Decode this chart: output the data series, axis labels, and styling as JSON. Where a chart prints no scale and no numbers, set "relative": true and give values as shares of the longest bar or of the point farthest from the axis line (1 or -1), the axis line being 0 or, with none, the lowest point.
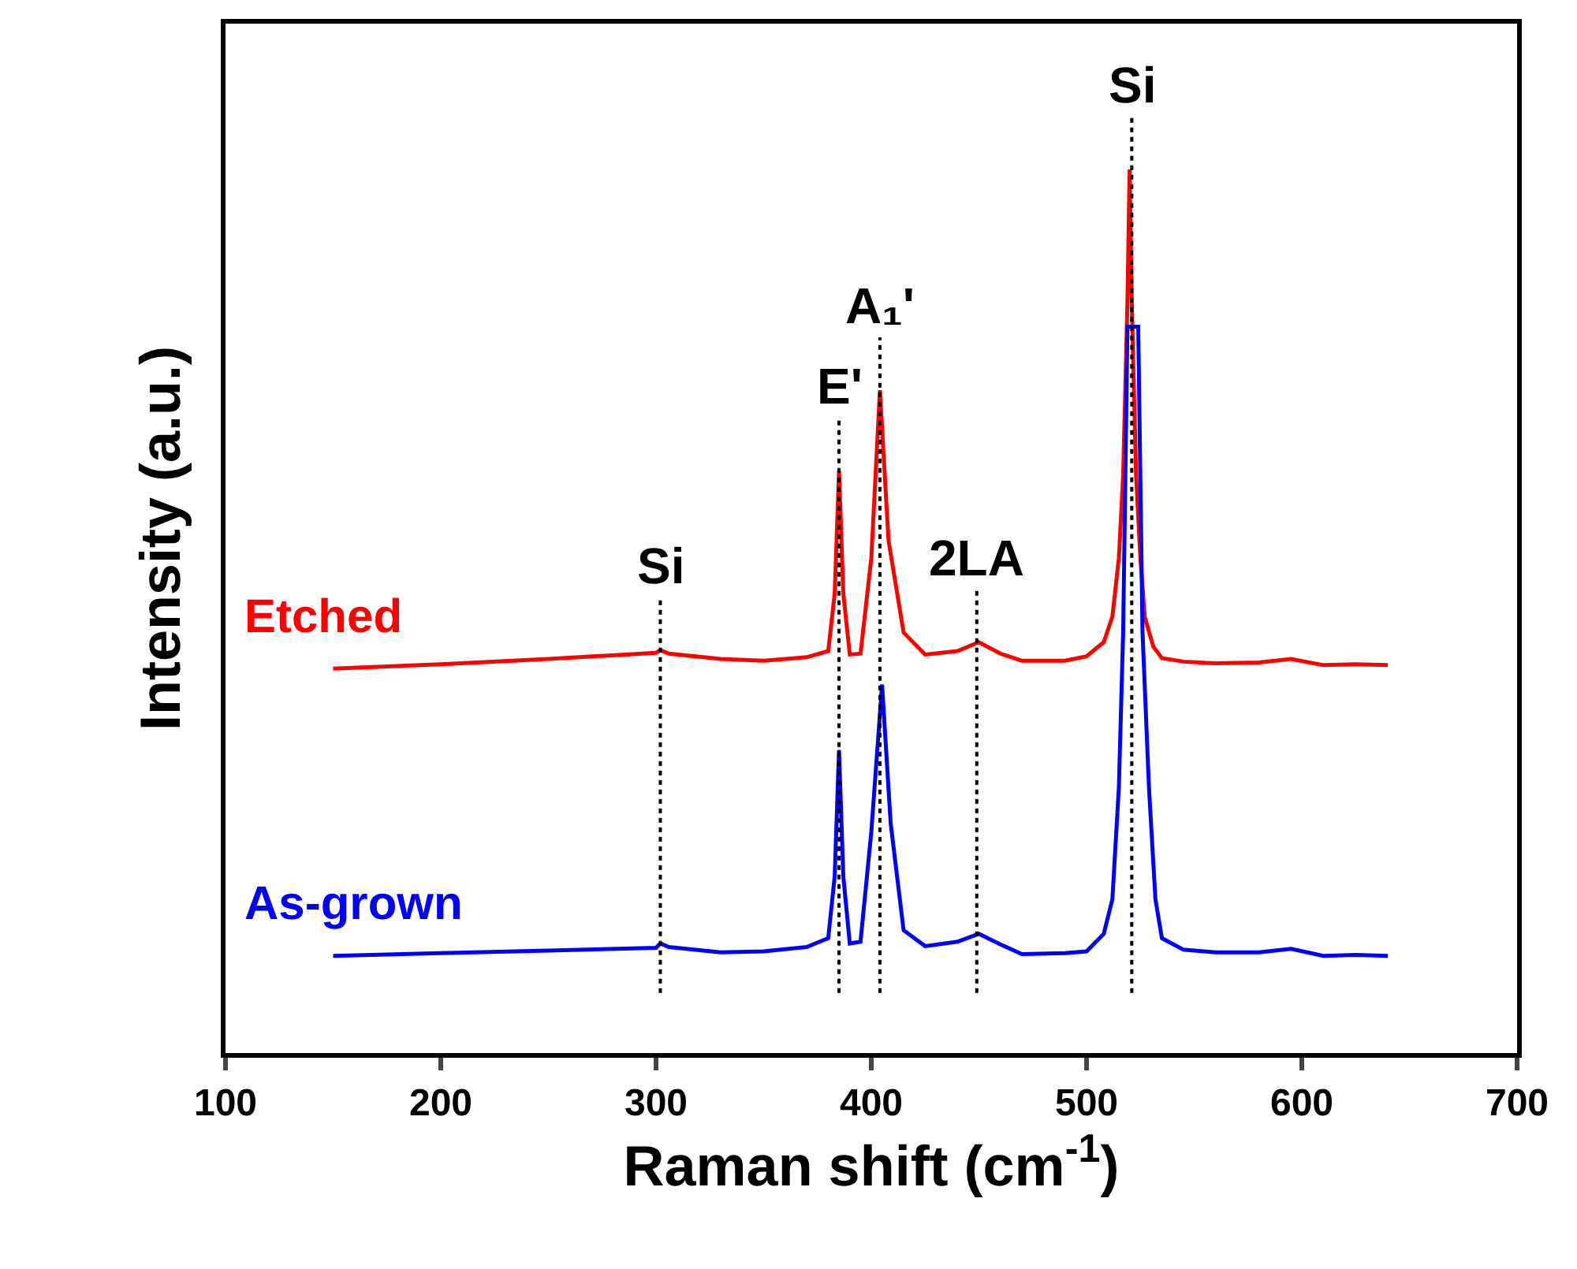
{
  "chart_data": {
    "type": "line",
    "relative": true,
    "xlabel": "Raman shift (cm$^{-1}$)",
    "ylabel": "Intensity (a.u.)",
    "xlim": [
      100,
      700
    ],
    "xticks": [
      100,
      200,
      300,
      400,
      500,
      600,
      700
    ],
    "legend": false,
    "tick_labels": "x",
    "series": [
      {
        "name": "Etched",
        "color": "#ff0000",
        "x": [
          150,
          200,
          250,
          300,
          302,
          306,
          330,
          350,
          370,
          380,
          383,
          385,
          387,
          390,
          395,
          400,
          404,
          408,
          415,
          425,
          440,
          450,
          460,
          470,
          490,
          500,
          508,
          512,
          515,
          517,
          519,
          520,
          521,
          523,
          525,
          527,
          531,
          535,
          545,
          560,
          580,
          595,
          610,
          625,
          640
        ],
        "values": [
          0.435,
          0.44,
          0.446,
          0.453,
          0.456,
          0.452,
          0.446,
          0.444,
          0.448,
          0.455,
          0.52,
          0.659,
          0.52,
          0.451,
          0.452,
          0.56,
          0.75,
          0.58,
          0.476,
          0.451,
          0.455,
          0.465,
          0.452,
          0.444,
          0.444,
          0.449,
          0.465,
          0.494,
          0.56,
          0.654,
          0.85,
          1,
          0.85,
          0.654,
          0.56,
          0.494,
          0.46,
          0.447,
          0.443,
          0.441,
          0.442,
          0.446,
          0.439,
          0.44,
          0.439
        ]
      },
      {
        "name": "As-grown",
        "color": "#0000ff",
        "x": [
          150,
          200,
          250,
          300,
          302,
          306,
          330,
          350,
          370,
          380,
          383,
          385,
          387,
          390,
          395,
          400,
          405,
          409,
          415,
          425,
          440,
          450,
          460,
          470,
          490,
          500,
          508,
          512,
          515,
          517,
          519,
          524,
          526,
          529,
          532,
          535,
          545,
          560,
          580,
          595,
          610,
          625,
          640
        ],
        "values": [
          0.11,
          0.113,
          0.116,
          0.119,
          0.124,
          0.12,
          0.114,
          0.115,
          0.12,
          0.13,
          0.2,
          0.343,
          0.2,
          0.124,
          0.126,
          0.25,
          0.417,
          0.26,
          0.139,
          0.121,
          0.126,
          0.135,
          0.123,
          0.112,
          0.113,
          0.115,
          0.135,
          0.174,
          0.3,
          0.476,
          0.822,
          0.822,
          0.476,
          0.3,
          0.174,
          0.13,
          0.117,
          0.114,
          0.114,
          0.118,
          0.11,
          0.111,
          0.11
        ]
      }
    ],
    "ref_lines": [
      {
        "axis": "x",
        "value": 302,
        "label": "Si",
        "color": "#000000",
        "line_style": "dotted"
      },
      {
        "axis": "x",
        "value": 385,
        "label": "E'",
        "color": "#000000",
        "line_style": "dotted"
      },
      {
        "axis": "x",
        "value": 404,
        "label": "A₁'",
        "color": "#000000",
        "line_style": "dotted"
      },
      {
        "axis": "x",
        "value": 449,
        "label": "2LA",
        "color": "#000000",
        "line_style": "dotted"
      },
      {
        "axis": "x",
        "value": 521,
        "label": "Si",
        "color": "#000000",
        "line_style": "dotted"
      }
    ]
  }
}
